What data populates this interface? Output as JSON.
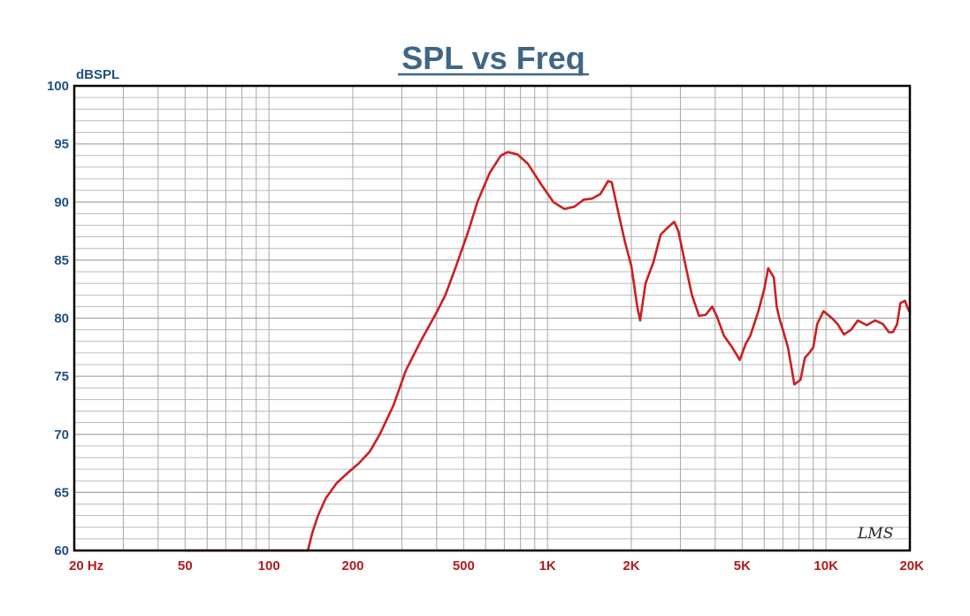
{
  "chart_data": {
    "type": "line",
    "title": "SPL vs Freq",
    "ylabel": "dBSPL",
    "xlabel": "",
    "x_scale": "log",
    "xlim": [
      20,
      20000
    ],
    "ylim": [
      60,
      100
    ],
    "grid": true,
    "x_ticks": [
      {
        "value": 20,
        "label": "20  Hz"
      },
      {
        "value": 50,
        "label": "50"
      },
      {
        "value": 100,
        "label": "100"
      },
      {
        "value": 200,
        "label": "200"
      },
      {
        "value": 500,
        "label": "500"
      },
      {
        "value": 1000,
        "label": "1K"
      },
      {
        "value": 2000,
        "label": "2K"
      },
      {
        "value": 5000,
        "label": "5K"
      },
      {
        "value": 10000,
        "label": "10K"
      },
      {
        "value": 20000,
        "label": "20K"
      }
    ],
    "y_ticks": [
      {
        "value": 60,
        "label": "60"
      },
      {
        "value": 65,
        "label": "65"
      },
      {
        "value": 70,
        "label": "70"
      },
      {
        "value": 75,
        "label": "75"
      },
      {
        "value": 80,
        "label": "80"
      },
      {
        "value": 85,
        "label": "85"
      },
      {
        "value": 90,
        "label": "90"
      },
      {
        "value": 95,
        "label": "95"
      },
      {
        "value": 100,
        "label": "100"
      }
    ],
    "series": [
      {
        "color": "#cc1f1f",
        "x": [
          50,
          80,
          100,
          138,
          143,
          150,
          160,
          175,
          190,
          210,
          230,
          250,
          280,
          310,
          350,
          400,
          430,
          470,
          520,
          560,
          620,
          680,
          720,
          780,
          850,
          950,
          1050,
          1150,
          1250,
          1350,
          1450,
          1550,
          1650,
          1700,
          1800,
          1900,
          2000,
          2100,
          2150,
          2250,
          2400,
          2550,
          2700,
          2850,
          2950,
          3100,
          3300,
          3500,
          3700,
          3900,
          4050,
          4300,
          4600,
          4900,
          5150,
          5350,
          5700,
          6000,
          6200,
          6500,
          6650,
          6800,
          7000,
          7300,
          7700,
          8100,
          8400,
          8700,
          9000,
          9300,
          9800,
          10500,
          11000,
          11600,
          12300,
          13000,
          14000,
          15000,
          16000,
          16800,
          17400,
          18000,
          18500,
          19200,
          19700,
          20000
        ],
        "values": [
          60,
          60,
          60,
          60,
          61.5,
          63,
          64.5,
          65.8,
          66.6,
          67.5,
          68.5,
          70,
          72.5,
          75.5,
          78,
          80.5,
          82,
          84.5,
          87.5,
          90,
          92.5,
          94,
          94.3,
          94.1,
          93.3,
          91.5,
          90,
          89.4,
          89.6,
          90.2,
          90.3,
          90.7,
          91.8,
          91.7,
          89,
          86.5,
          84.5,
          81,
          79.8,
          83,
          84.8,
          87.2,
          87.8,
          88.3,
          87.5,
          85,
          82,
          80.2,
          80.3,
          81,
          80.2,
          78.5,
          77.5,
          76.4,
          77.8,
          78.5,
          80.5,
          82.5,
          84.3,
          83.5,
          81,
          80,
          79,
          77.5,
          74.3,
          74.7,
          76.6,
          77,
          77.5,
          79.5,
          80.6,
          80,
          79.5,
          78.6,
          79,
          79.8,
          79.4,
          79.8,
          79.5,
          78.8,
          78.8,
          79.5,
          81.3,
          81.5,
          80.8,
          80.5
        ]
      }
    ]
  },
  "watermark": "LMS",
  "colors": {
    "title": "#3f6685",
    "axis_text_y": "#1f4f80",
    "axis_text_x": "#b51a1a",
    "grid": "#a8a8a8",
    "frame": "#000000"
  }
}
